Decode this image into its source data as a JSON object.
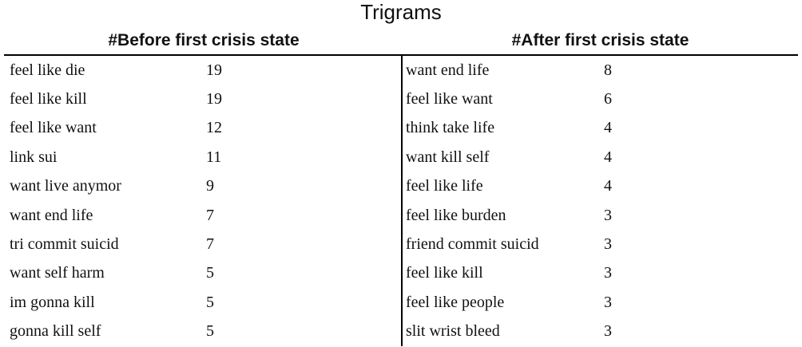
{
  "title": "Trigrams",
  "before": {
    "header": "#Before first crisis state",
    "rows": [
      {
        "term": "feel like die",
        "count": "19"
      },
      {
        "term": "feel like kill",
        "count": "19"
      },
      {
        "term": "feel like want",
        "count": "12"
      },
      {
        "term": "link sui",
        "count": "11"
      },
      {
        "term": "want live anymor",
        "count": "9"
      },
      {
        "term": "want end life",
        "count": "7"
      },
      {
        "term": "tri commit suicid",
        "count": "7"
      },
      {
        "term": "want self harm",
        "count": "5"
      },
      {
        "term": "im gonna kill",
        "count": "5"
      },
      {
        "term": "gonna kill self",
        "count": "5"
      }
    ]
  },
  "after": {
    "header": "#After first crisis state",
    "rows": [
      {
        "term": "want end life",
        "count": "8"
      },
      {
        "term": "feel like want",
        "count": "6"
      },
      {
        "term": "think take life",
        "count": "4"
      },
      {
        "term": "want kill self",
        "count": "4"
      },
      {
        "term": "feel like life",
        "count": "4"
      },
      {
        "term": "feel like burden",
        "count": "3"
      },
      {
        "term": "friend commit suicid",
        "count": "3"
      },
      {
        "term": "feel like kill",
        "count": "3"
      },
      {
        "term": "feel like people",
        "count": "3"
      },
      {
        "term": "slit wrist bleed",
        "count": "3"
      }
    ]
  }
}
